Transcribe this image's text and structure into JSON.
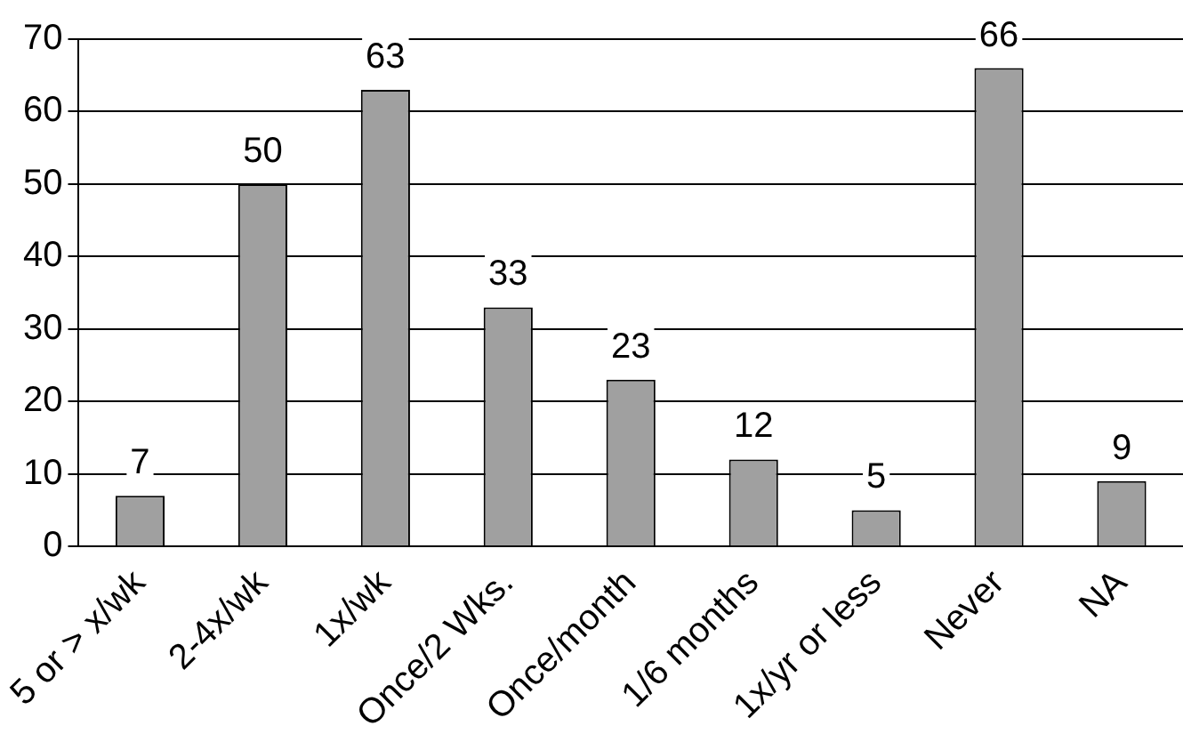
{
  "chart_data": {
    "type": "bar",
    "categories": [
      "5 or > x/wk",
      "2-4x/wk",
      "1x/wk",
      "Once/2 Wks.",
      "Once/month",
      "1/6 months",
      "1x/yr or less",
      "Never",
      "NA"
    ],
    "values": [
      7,
      50,
      63,
      33,
      23,
      12,
      5,
      66,
      9
    ],
    "color": "#a0a0a0",
    "ylim": [
      0,
      70
    ],
    "yticks": [
      0,
      10,
      20,
      30,
      40,
      50,
      60,
      70
    ],
    "grid": "y",
    "legend": false,
    "data_labels": true
  }
}
